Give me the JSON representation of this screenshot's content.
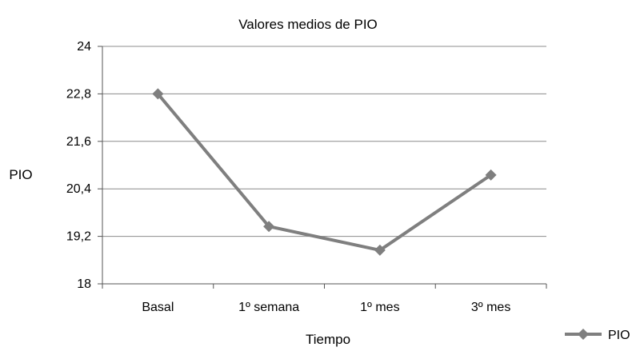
{
  "chart_data": {
    "type": "line",
    "title": "Valores medios de PIO",
    "xlabel": "Tiempo",
    "ylabel": "PIO",
    "categories": [
      "Basal",
      "1º semana",
      "1º mes",
      "3º mes"
    ],
    "ylim": [
      18,
      24
    ],
    "yticks": [
      "18",
      "19,2",
      "20,4",
      "21,6",
      "22,8",
      "24"
    ],
    "ytick_values": [
      18,
      19.2,
      20.4,
      21.6,
      22.8,
      24
    ],
    "grid": true,
    "legend_position": "bottom-right",
    "series": [
      {
        "name": "PIO",
        "values": [
          22.8,
          19.45,
          18.85,
          20.75
        ],
        "color": "#7f7f7f",
        "marker": "diamond"
      }
    ]
  }
}
